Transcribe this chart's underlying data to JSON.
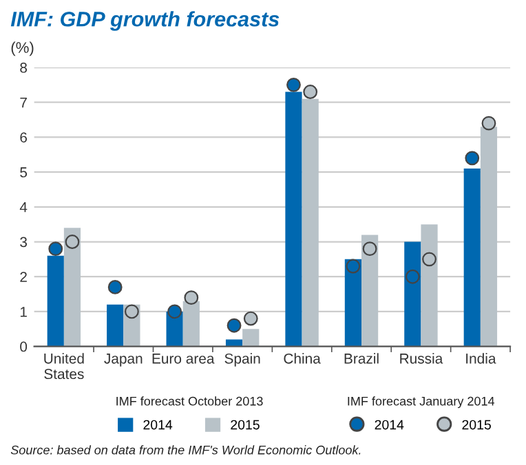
{
  "chart_data": {
    "type": "bar",
    "title": "IMF: GDP growth forecasts",
    "ylabel": "(%)",
    "categories": [
      "United\nStates",
      "Japan",
      "Euro area",
      "Spain",
      "China",
      "Brazil",
      "Russia",
      "India"
    ],
    "series": [
      {
        "name": "2014",
        "color": "#0068b0",
        "values": [
          2.6,
          1.2,
          1.0,
          0.2,
          7.3,
          2.5,
          3.0,
          5.1
        ]
      },
      {
        "name": "2015",
        "color": "#b8c2c8",
        "values": [
          3.4,
          1.2,
          1.3,
          0.5,
          7.1,
          3.2,
          3.5,
          6.3
        ]
      },
      {
        "name": "2014",
        "type": "scatter",
        "color": "#0068b0",
        "x": [
          "United\nStates",
          "Japan",
          "Euro area",
          "Spain",
          "China",
          "Brazil",
          "Russia",
          "India"
        ],
        "values": [
          2.8,
          1.7,
          1.0,
          0.6,
          7.5,
          2.3,
          2.0,
          5.4
        ]
      },
      {
        "name": "2015",
        "type": "scatter",
        "color": "#b8c2c8",
        "x": [
          "United\nStates",
          "Japan",
          "Euro area",
          "Spain",
          "China",
          "Brazil",
          "Russia",
          "India"
        ],
        "values": [
          3.0,
          1.0,
          1.4,
          0.8,
          7.3,
          2.8,
          2.5,
          6.4
        ]
      }
    ],
    "ylim": [
      0,
      8
    ],
    "yticks": [
      0,
      1,
      2,
      3,
      4,
      5,
      6,
      7,
      8
    ],
    "grid": "y",
    "legend": "bottom",
    "marker": "circle",
    "annotations": [
      "IMF forecast October 2013",
      "IMF forecast January 2014",
      "Source: based on data from the IMF's World Economic Outlook."
    ]
  }
}
